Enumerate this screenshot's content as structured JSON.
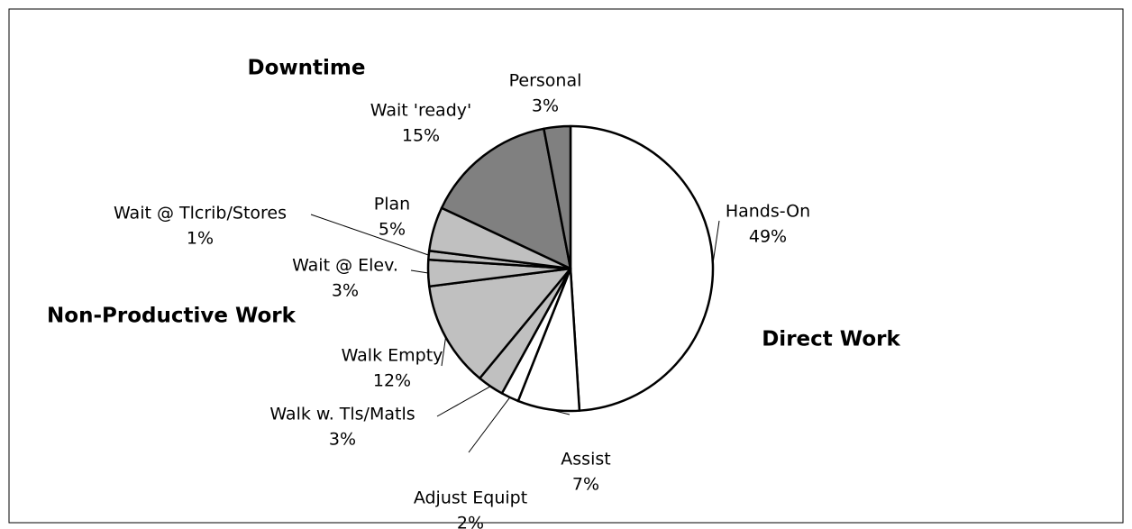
{
  "chart_data": {
    "type": "pie",
    "categories": [
      "Hands-On",
      "Assist",
      "Adjust Equipt",
      "Walk w. Tls/Matls",
      "Walk Empty",
      "Wait @ Elev.",
      "Wait @ Tlcrib/Stores",
      "Plan",
      "Wait 'ready'",
      "Personal"
    ],
    "values": [
      49,
      7,
      2,
      3,
      12,
      3,
      1,
      5,
      15,
      3
    ],
    "value_labels": [
      "49%",
      "7%",
      "2%",
      "3%",
      "12%",
      "3%",
      "1%",
      "5%",
      "15%",
      "3%"
    ],
    "colors": [
      "#ffffff",
      "#ffffff",
      "#ffffff",
      "#c0c0c0",
      "#c0c0c0",
      "#c0c0c0",
      "#c0c0c0",
      "#c0c0c0",
      "#808080",
      "#808080"
    ],
    "annotations": [
      "Downtime",
      "Non-Productive Work",
      "Direct Work"
    ]
  }
}
